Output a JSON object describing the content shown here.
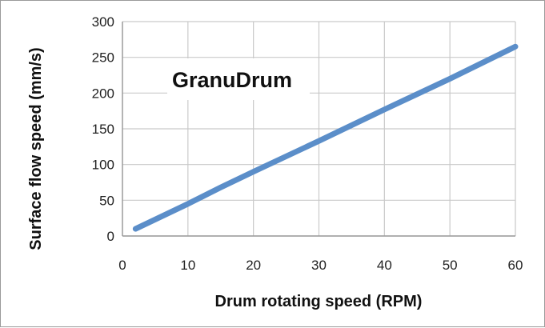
{
  "chart_data": {
    "type": "line",
    "title": "GranuDrum",
    "xlabel": "Drum rotating speed (RPM)",
    "ylabel": "Surface flow speed (mm/s)",
    "xlim": [
      0,
      60
    ],
    "ylim": [
      0,
      300
    ],
    "xticks": [
      "0",
      "10",
      "20",
      "30",
      "40",
      "50",
      "60"
    ],
    "yticks": [
      "0",
      "50",
      "100",
      "150",
      "200",
      "250",
      "300"
    ],
    "grid": true,
    "legend": "none",
    "series": [
      {
        "color": "#5b8ec9",
        "points": [
          [
            2,
            10
          ],
          [
            10,
            45
          ],
          [
            15,
            68
          ],
          [
            20,
            90
          ],
          [
            30,
            133
          ],
          [
            40,
            177
          ],
          [
            50,
            220
          ],
          [
            60,
            265
          ]
        ]
      }
    ]
  }
}
